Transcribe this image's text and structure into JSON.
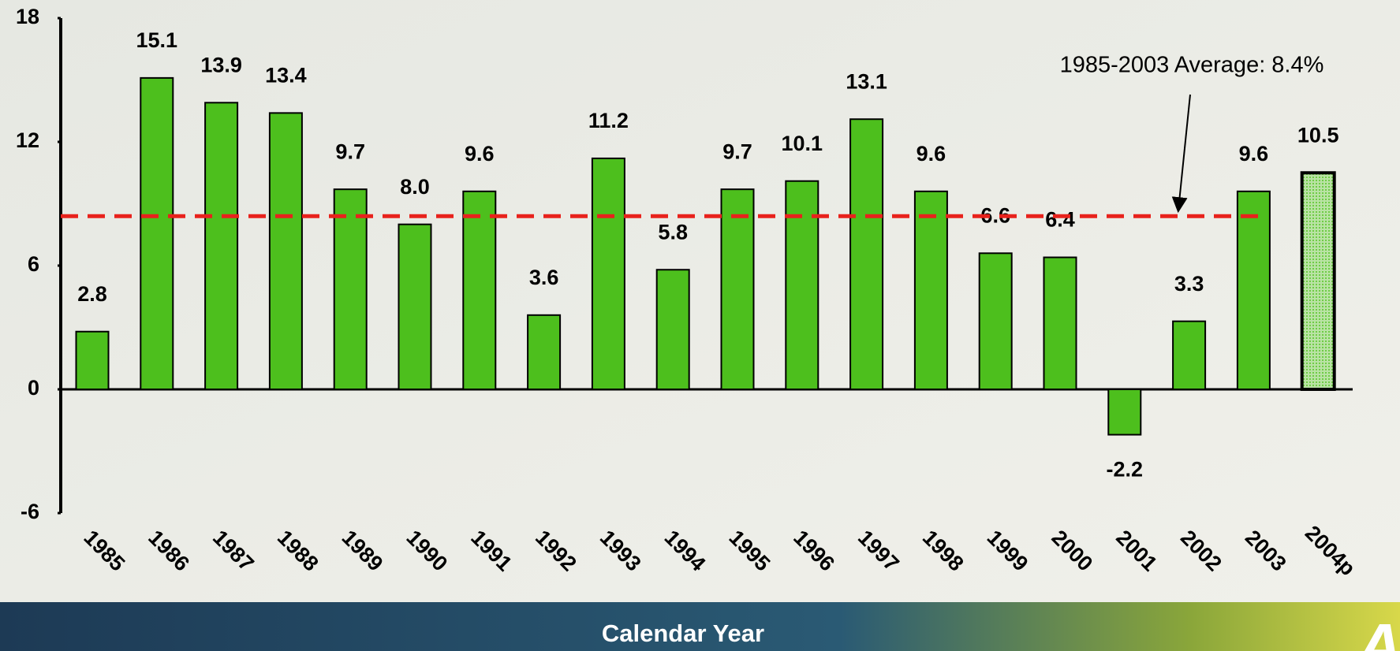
{
  "chart_data": {
    "type": "bar",
    "categories": [
      "1985",
      "1986",
      "1987",
      "1988",
      "1989",
      "1990",
      "1991",
      "1992",
      "1993",
      "1994",
      "1995",
      "1996",
      "1997",
      "1998",
      "1999",
      "2000",
      "2001",
      "2002",
      "2003",
      "2004p"
    ],
    "values": [
      2.8,
      15.1,
      13.9,
      13.4,
      9.7,
      8.0,
      9.6,
      3.6,
      11.2,
      5.8,
      9.7,
      10.1,
      13.1,
      9.6,
      6.6,
      6.4,
      -2.2,
      3.3,
      9.6,
      10.5
    ],
    "value_labels": [
      "2.8",
      "15.1",
      "13.9",
      "13.4",
      "9.7",
      "8.0",
      "9.6",
      "3.6",
      "11.2",
      "5.8",
      "9.7",
      "10.1",
      "13.1",
      "9.6",
      "6.6",
      "6.4",
      "-2.2",
      "3.3",
      "9.6",
      "10.5"
    ],
    "colors": [
      "#4dbf1d",
      "#4dbf1d",
      "#4dbf1d",
      "#4dbf1d",
      "#4dbf1d",
      "#4dbf1d",
      "#4dbf1d",
      "#4dbf1d",
      "#4dbf1d",
      "#4dbf1d",
      "#4dbf1d",
      "#4dbf1d",
      "#4dbf1d",
      "#4dbf1d",
      "#4dbf1d",
      "#4dbf1d",
      "#4dbf1d",
      "#4dbf1d",
      "#4dbf1d",
      "#b9e3a4"
    ],
    "average": {
      "value": 8.4,
      "label": "1985-2003 Average: 8.4%",
      "color": "#e8221c"
    },
    "x_label": "Calendar Year",
    "ylim": [
      -6,
      18
    ],
    "yticks": [
      -6,
      0,
      6,
      12,
      18
    ],
    "logo": "AIS"
  }
}
